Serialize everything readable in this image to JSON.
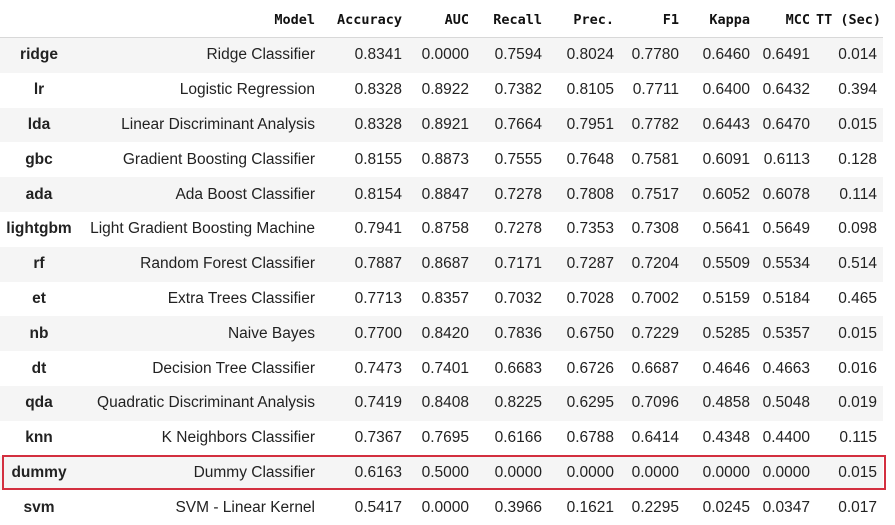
{
  "columns": [
    "",
    "Model",
    "Accuracy",
    "AUC",
    "Recall",
    "Prec.",
    "F1",
    "Kappa",
    "MCC",
    "TT (Sec)"
  ],
  "rows": [
    {
      "id": "ridge",
      "model": "Ridge Classifier",
      "accuracy": "0.8341",
      "auc": "0.0000",
      "recall": "0.7594",
      "prec": "0.8024",
      "f1": "0.7780",
      "kappa": "0.6460",
      "mcc": "0.6491",
      "tt": "0.014"
    },
    {
      "id": "lr",
      "model": "Logistic Regression",
      "accuracy": "0.8328",
      "auc": "0.8922",
      "recall": "0.7382",
      "prec": "0.8105",
      "f1": "0.7711",
      "kappa": "0.6400",
      "mcc": "0.6432",
      "tt": "0.394"
    },
    {
      "id": "lda",
      "model": "Linear Discriminant Analysis",
      "accuracy": "0.8328",
      "auc": "0.8921",
      "recall": "0.7664",
      "prec": "0.7951",
      "f1": "0.7782",
      "kappa": "0.6443",
      "mcc": "0.6470",
      "tt": "0.015"
    },
    {
      "id": "gbc",
      "model": "Gradient Boosting Classifier",
      "accuracy": "0.8155",
      "auc": "0.8873",
      "recall": "0.7555",
      "prec": "0.7648",
      "f1": "0.7581",
      "kappa": "0.6091",
      "mcc": "0.6113",
      "tt": "0.128"
    },
    {
      "id": "ada",
      "model": "Ada Boost Classifier",
      "accuracy": "0.8154",
      "auc": "0.8847",
      "recall": "0.7278",
      "prec": "0.7808",
      "f1": "0.7517",
      "kappa": "0.6052",
      "mcc": "0.6078",
      "tt": "0.114"
    },
    {
      "id": "lightgbm",
      "model": "Light Gradient Boosting Machine",
      "accuracy": "0.7941",
      "auc": "0.8758",
      "recall": "0.7278",
      "prec": "0.7353",
      "f1": "0.7308",
      "kappa": "0.5641",
      "mcc": "0.5649",
      "tt": "0.098"
    },
    {
      "id": "rf",
      "model": "Random Forest Classifier",
      "accuracy": "0.7887",
      "auc": "0.8687",
      "recall": "0.7171",
      "prec": "0.7287",
      "f1": "0.7204",
      "kappa": "0.5509",
      "mcc": "0.5534",
      "tt": "0.514"
    },
    {
      "id": "et",
      "model": "Extra Trees Classifier",
      "accuracy": "0.7713",
      "auc": "0.8357",
      "recall": "0.7032",
      "prec": "0.7028",
      "f1": "0.7002",
      "kappa": "0.5159",
      "mcc": "0.5184",
      "tt": "0.465"
    },
    {
      "id": "nb",
      "model": "Naive Bayes",
      "accuracy": "0.7700",
      "auc": "0.8420",
      "recall": "0.7836",
      "prec": "0.6750",
      "f1": "0.7229",
      "kappa": "0.5285",
      "mcc": "0.5357",
      "tt": "0.015"
    },
    {
      "id": "dt",
      "model": "Decision Tree Classifier",
      "accuracy": "0.7473",
      "auc": "0.7401",
      "recall": "0.6683",
      "prec": "0.6726",
      "f1": "0.6687",
      "kappa": "0.4646",
      "mcc": "0.4663",
      "tt": "0.016"
    },
    {
      "id": "qda",
      "model": "Quadratic Discriminant Analysis",
      "accuracy": "0.7419",
      "auc": "0.8408",
      "recall": "0.8225",
      "prec": "0.6295",
      "f1": "0.7096",
      "kappa": "0.4858",
      "mcc": "0.5048",
      "tt": "0.019"
    },
    {
      "id": "knn",
      "model": "K Neighbors Classifier",
      "accuracy": "0.7367",
      "auc": "0.7695",
      "recall": "0.6166",
      "prec": "0.6788",
      "f1": "0.6414",
      "kappa": "0.4348",
      "mcc": "0.4400",
      "tt": "0.115"
    },
    {
      "id": "dummy",
      "model": "Dummy Classifier",
      "accuracy": "0.6163",
      "auc": "0.5000",
      "recall": "0.0000",
      "prec": "0.0000",
      "f1": "0.0000",
      "kappa": "0.0000",
      "mcc": "0.0000",
      "tt": "0.015"
    },
    {
      "id": "svm",
      "model": "SVM - Linear Kernel",
      "accuracy": "0.5417",
      "auc": "0.0000",
      "recall": "0.3966",
      "prec": "0.1621",
      "f1": "0.2295",
      "kappa": "0.0245",
      "mcc": "0.0347",
      "tt": "0.017"
    }
  ],
  "highlighted_row": "dummy",
  "colors": {
    "highlight_border": "#d32f3f",
    "stripe": "#f5f5f5"
  }
}
